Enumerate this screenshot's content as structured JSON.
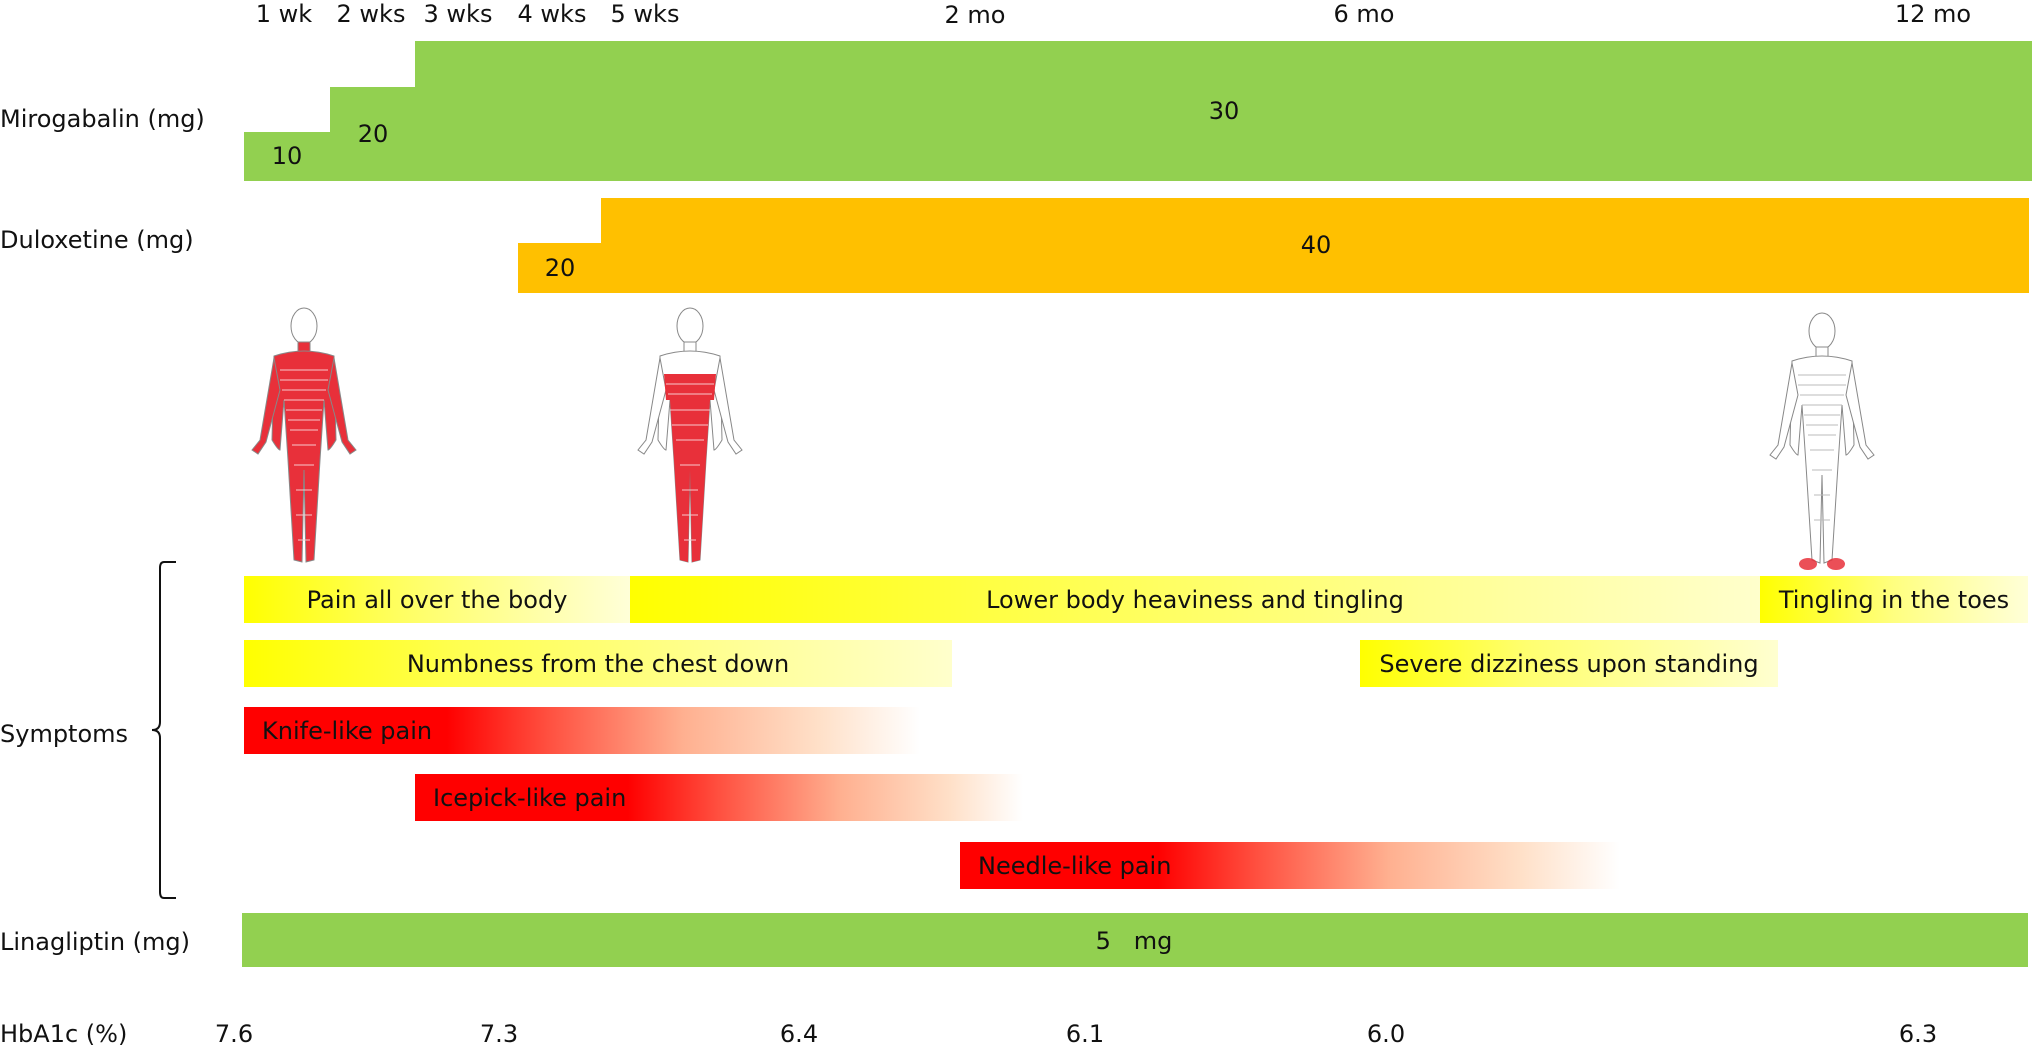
{
  "timeline": {
    "ticks": [
      {
        "label": "1 wk"
      },
      {
        "label": "2 wks"
      },
      {
        "label": "3 wks"
      },
      {
        "label": "4 wks"
      },
      {
        "label": "5 wks"
      },
      {
        "label": "2 mo"
      },
      {
        "label": "6 mo"
      },
      {
        "label": "12 mo"
      }
    ]
  },
  "mirogabalin": {
    "label": "Mirogabalin (mg)",
    "doses": [
      "10",
      "20",
      "30"
    ],
    "color": "#92d050"
  },
  "duloxetine": {
    "label": "Duloxetine (mg)",
    "doses": [
      "20",
      "40"
    ],
    "color": "#ffc000"
  },
  "body_figures": [
    {
      "icon": "full-body-pain-figure-icon"
    },
    {
      "icon": "lower-body-pain-figure-icon"
    },
    {
      "icon": "toes-pain-figure-icon"
    }
  ],
  "symptoms": {
    "label": "Symptoms",
    "items": [
      {
        "text": "Pain all over the body",
        "kind": "yellow"
      },
      {
        "text": "Lower body heaviness and tingling",
        "kind": "yellow"
      },
      {
        "text": "Tingling in the toes",
        "kind": "yellow"
      },
      {
        "text": "Numbness from the chest down",
        "kind": "yellow"
      },
      {
        "text": "Severe dizziness upon standing",
        "kind": "yellow"
      },
      {
        "text": "Knife-like pain",
        "kind": "red"
      },
      {
        "text": "Icepick-like pain",
        "kind": "red"
      },
      {
        "text": "Needle-like pain",
        "kind": "red"
      }
    ],
    "colors": {
      "yellow": "#ffff00",
      "red": "#ff0000"
    }
  },
  "linagliptin": {
    "label": "Linagliptin (mg)",
    "dose": "5   mg",
    "color": "#92d050"
  },
  "hba1c": {
    "label": "HbA1c (%)",
    "values": [
      "7.6",
      "7.3",
      "6.4",
      "6.1",
      "6.0",
      "6.3"
    ]
  }
}
